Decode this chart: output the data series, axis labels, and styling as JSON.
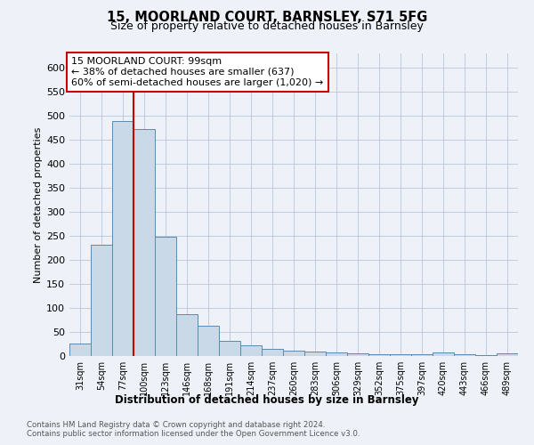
{
  "title1": "15, MOORLAND COURT, BARNSLEY, S71 5FG",
  "title2": "Size of property relative to detached houses in Barnsley",
  "xlabel": "Distribution of detached houses by size in Barnsley",
  "ylabel": "Number of detached properties",
  "categories": [
    "31sqm",
    "54sqm",
    "77sqm",
    "100sqm",
    "123sqm",
    "146sqm",
    "168sqm",
    "191sqm",
    "214sqm",
    "237sqm",
    "260sqm",
    "283sqm",
    "306sqm",
    "329sqm",
    "352sqm",
    "375sqm",
    "397sqm",
    "420sqm",
    "443sqm",
    "466sqm",
    "489sqm"
  ],
  "values": [
    26,
    232,
    490,
    472,
    249,
    88,
    63,
    31,
    23,
    14,
    11,
    10,
    8,
    5,
    4,
    4,
    4,
    7,
    3,
    1,
    5
  ],
  "bar_color": "#c9d9e8",
  "bar_edge_color": "#5a8ab0",
  "vline_color": "#cc0000",
  "vline_x": 2.5,
  "annotation_line1": "15 MOORLAND COURT: 99sqm",
  "annotation_line2": "← 38% of detached houses are smaller (637)",
  "annotation_line3": "60% of semi-detached houses are larger (1,020) →",
  "annotation_box_edge": "#cc0000",
  "ylim": [
    0,
    630
  ],
  "yticks": [
    0,
    50,
    100,
    150,
    200,
    250,
    300,
    350,
    400,
    450,
    500,
    550,
    600
  ],
  "footer1": "Contains HM Land Registry data © Crown copyright and database right 2024.",
  "footer2": "Contains public sector information licensed under the Open Government Licence v3.0.",
  "bg_color": "#eef2f8"
}
